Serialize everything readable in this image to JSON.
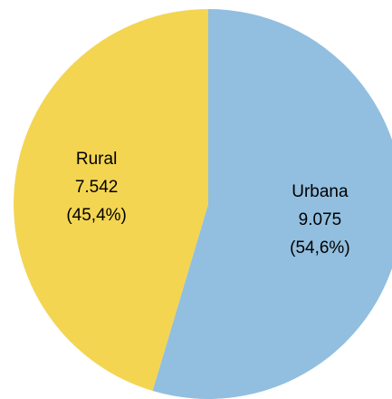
{
  "chart_data": {
    "type": "pie",
    "title": "",
    "slices": [
      {
        "label": "Urbana",
        "value": 9075,
        "value_text": "9.075",
        "percent_text": "(54,6%)",
        "color": "#92bfdf"
      },
      {
        "label": "Rural",
        "value": 7542,
        "value_text": "7.542",
        "percent_text": "(45,4%)",
        "color": "#f3d552"
      }
    ],
    "start": "12 o'clock",
    "direction": "clockwise",
    "legend": "none"
  }
}
